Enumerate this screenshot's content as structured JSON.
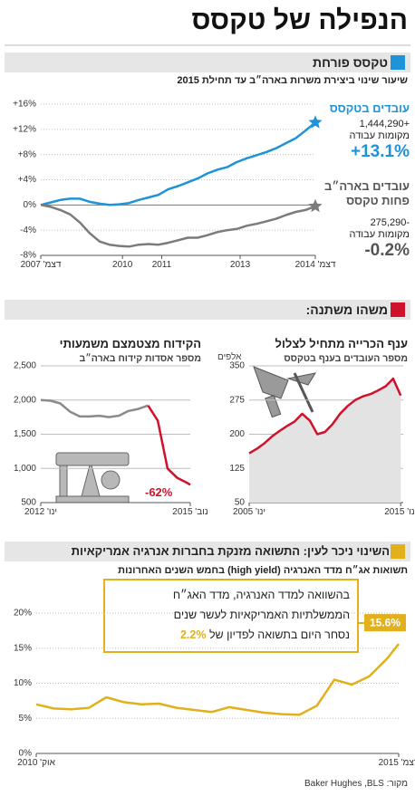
{
  "title": "הנפילה של טקסס",
  "sections": [
    {
      "title": "טקסס פורחת",
      "subtitle": "שיעור שינוי ביצירת משרות בארה״ב עד תחילת 2015"
    },
    {
      "title": "משהו משתנה:"
    },
    {
      "title": "השינוי ניכר לעין: התשואה מזנקת בחברות אנרגיה אמריקאיות",
      "subtitle": "תשואות אג״ח מדד האנרגיה (high yield) בחמש השנים האחרונות"
    }
  ],
  "source": "מקור: Baker Hughes ,BLS",
  "chart_data": [
    {
      "type": "line",
      "grid": true,
      "x": [
        "2007-12",
        "2008-03",
        "2008-06",
        "2008-09",
        "2008-12",
        "2009-03",
        "2009-06",
        "2009-09",
        "2009-12",
        "2010-03",
        "2010-06",
        "2010-09",
        "2010-12",
        "2011-03",
        "2011-06",
        "2011-09",
        "2011-12",
        "2012-03",
        "2012-06",
        "2012-09",
        "2012-12",
        "2013-03",
        "2013-06",
        "2013-09",
        "2013-12",
        "2014-03",
        "2014-06",
        "2014-09",
        "2014-12"
      ],
      "xlim": [
        "2007-12",
        "2014-12"
      ],
      "xticks": [
        {
          "value": "2007-12",
          "label": "דצמ' 2007"
        },
        {
          "value": "2010-01",
          "label": "2010"
        },
        {
          "value": "2011-01",
          "label": "2011"
        },
        {
          "value": "2013-01",
          "label": "2013"
        },
        {
          "value": "2014-12",
          "label": "דצמ' 2014"
        }
      ],
      "ylim": [
        -8,
        16
      ],
      "yticks": [
        {
          "value": 16,
          "label": "+16%"
        },
        {
          "value": 12,
          "label": "+12%"
        },
        {
          "value": 8,
          "label": "+8%"
        },
        {
          "value": 4,
          "label": "+4%"
        },
        {
          "value": 0,
          "label": "0%"
        },
        {
          "value": -4,
          "label": "-4%"
        },
        {
          "value": -8,
          "label": "-8%"
        }
      ],
      "series": [
        {
          "name": "עובדים בטקסס",
          "color": "#1f93d8",
          "marker": "star",
          "jobs_label": "+1,444,290",
          "jobs_unit": "מקומות עבודה",
          "change_label": "+13.1%",
          "values": [
            0,
            0.4,
            0.8,
            1.0,
            1.0,
            0.5,
            0.2,
            0.0,
            0.1,
            0.3,
            0.8,
            1.2,
            1.6,
            2.5,
            3.0,
            3.6,
            4.2,
            5.0,
            5.6,
            6.0,
            6.8,
            7.4,
            7.9,
            8.4,
            9.0,
            9.8,
            10.6,
            11.8,
            13.1
          ]
        },
        {
          "name": "עובדים בארה״ב פחות טקסס",
          "color": "#7b7b7b",
          "marker": "star",
          "jobs_label": "-275,290",
          "jobs_unit": "מקומות עבודה",
          "change_label": "-0.2%",
          "values": [
            0,
            -0.3,
            -0.8,
            -1.5,
            -2.8,
            -4.5,
            -5.8,
            -6.3,
            -6.5,
            -6.6,
            -6.3,
            -6.2,
            -6.3,
            -6.0,
            -5.6,
            -5.2,
            -5.2,
            -4.8,
            -4.3,
            -4.0,
            -3.8,
            -3.3,
            -3.0,
            -2.6,
            -2.2,
            -1.6,
            -1.1,
            -0.8,
            -0.2
          ]
        }
      ]
    },
    {
      "type": "area",
      "grid": true,
      "title": "ענף הכרייה מתחיל לצלול",
      "subtitle": "מספר העובדים בענף בטקסס",
      "y_unit": "אלפים",
      "x": [
        "2005-01",
        "2005-07",
        "2006-01",
        "2006-07",
        "2007-01",
        "2007-07",
        "2008-01",
        "2008-07",
        "2009-01",
        "2009-07",
        "2010-01",
        "2010-07",
        "2011-01",
        "2011-07",
        "2012-01",
        "2012-07",
        "2013-01",
        "2013-07",
        "2014-01",
        "2014-07",
        "2015-01"
      ],
      "xlim": [
        "2005-01",
        "2015-03"
      ],
      "xticks": [
        {
          "value": "2005-01",
          "label": "ינו' 2005"
        },
        {
          "value": "2015-01",
          "label": "ינו' 2015"
        }
      ],
      "ylim": [
        50,
        350
      ],
      "yticks": [
        50,
        125,
        200,
        275,
        350
      ],
      "series": [
        {
          "color": "#d0112b",
          "fill": "#e3e3e3",
          "values": [
            158,
            168,
            180,
            195,
            207,
            218,
            228,
            245,
            230,
            200,
            205,
            222,
            245,
            262,
            275,
            283,
            288,
            296,
            305,
            322,
            285
          ]
        }
      ]
    },
    {
      "type": "line",
      "grid": true,
      "title": "הקידוח מצטמצם משמעותי",
      "subtitle": "מספר אסדות קידוח בארה״ב",
      "annotation": "-62%",
      "x": [
        "2012-01",
        "2012-04",
        "2012-07",
        "2012-10",
        "2013-01",
        "2013-04",
        "2013-07",
        "2013-10",
        "2014-01",
        "2014-04",
        "2014-07",
        "2014-10",
        "2015-01",
        "2015-04",
        "2015-07",
        "2015-10",
        "2015-11"
      ],
      "xlim": [
        "2012-01",
        "2015-11"
      ],
      "xticks": [
        {
          "value": "2012-01",
          "label": "ינו' 2012"
        },
        {
          "value": "2015-11",
          "label": "נוב' 2015"
        }
      ],
      "ylim": [
        500,
        2500
      ],
      "yticks": [
        500,
        {
          "value": 1000,
          "label": "1,000"
        },
        {
          "value": 1500,
          "label": "1,500"
        },
        {
          "value": 2000,
          "label": "2,000"
        },
        {
          "value": 2500,
          "label": "2,500"
        }
      ],
      "series": [
        {
          "color": "#8a8a8a",
          "values": [
            2000,
            1990,
            1950,
            1830,
            1760,
            1760,
            1770,
            1750,
            1770,
            1840,
            1870,
            1920,
            null,
            null,
            null,
            null,
            null
          ]
        },
        {
          "color": "#d0112b",
          "values": [
            null,
            null,
            null,
            null,
            null,
            null,
            null,
            null,
            null,
            null,
            null,
            1920,
            1700,
            1000,
            860,
            790,
            760
          ]
        }
      ]
    },
    {
      "type": "line",
      "grid": true,
      "annotation": {
        "lines": [
          "בהשוואה למדד האנרגיה, מדד האג״ח",
          "הממשלתיות האמריקאיות לעשר שנים",
          "נסחר היום בתשואה לפדיון של"
        ],
        "highlight": "2.2%"
      },
      "x": [
        "2010-10",
        "2011-01",
        "2011-04",
        "2011-07",
        "2011-10",
        "2012-01",
        "2012-04",
        "2012-07",
        "2012-10",
        "2013-01",
        "2013-04",
        "2013-07",
        "2013-10",
        "2014-01",
        "2014-04",
        "2014-07",
        "2014-10",
        "2015-01",
        "2015-04",
        "2015-07",
        "2015-10",
        "2015-12"
      ],
      "xlim": [
        "2010-10",
        "2015-12"
      ],
      "xticks": [
        {
          "value": "2010-10",
          "label": "אוק' 2010"
        },
        {
          "value": "2015-12",
          "label": "דצמ' 2015"
        }
      ],
      "ylim": [
        0,
        20
      ],
      "yticks": [
        {
          "value": 0,
          "label": "0%"
        },
        {
          "value": 5,
          "label": "5%"
        },
        {
          "value": 10,
          "label": "10%"
        },
        {
          "value": 15,
          "label": "15%"
        },
        {
          "value": 20,
          "label": "20%"
        }
      ],
      "series": [
        {
          "color": "#e1b01c",
          "values": [
            7.0,
            6.4,
            6.3,
            6.5,
            8.0,
            7.3,
            7.0,
            7.1,
            6.5,
            6.2,
            5.9,
            6.6,
            6.2,
            5.8,
            5.6,
            5.5,
            6.8,
            10.5,
            9.8,
            11.0,
            13.5,
            15.6
          ],
          "value_labels": [
            null,
            null,
            null,
            null,
            null,
            null,
            null,
            null,
            null,
            null,
            null,
            null,
            null,
            null,
            null,
            null,
            null,
            null,
            null,
            null,
            null,
            "15.6%"
          ]
        }
      ]
    }
  ]
}
